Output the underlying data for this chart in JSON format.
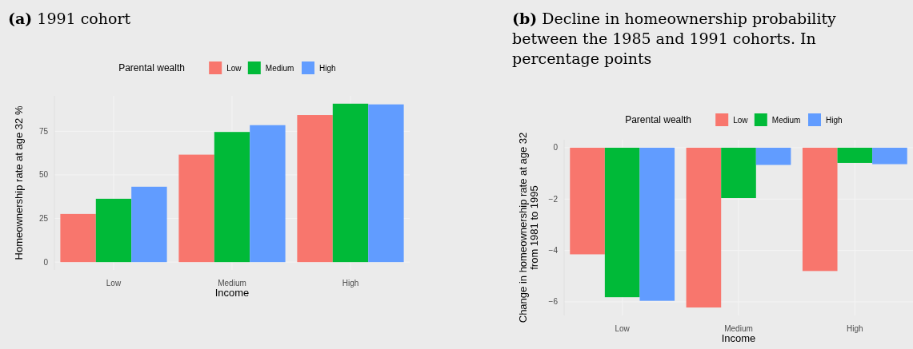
{
  "chart_data": [
    {
      "type": "bar",
      "title": "(a) 1991 cohort",
      "xlabel": "Income",
      "ylabel": "Homeownership rate  at age 32 %",
      "legend_title": "Parental wealth",
      "legend": "top",
      "grid": true,
      "categories": [
        "Low",
        "Medium",
        "High"
      ],
      "ylim": [
        -4.5,
        95.3
      ],
      "yticks": [
        0,
        25,
        50,
        75
      ],
      "series": [
        {
          "name": "Low",
          "color": "#f8766d",
          "values": [
            27.6,
            61.6,
            84.3
          ]
        },
        {
          "name": "Medium",
          "color": "#00ba38",
          "values": [
            36.3,
            74.6,
            90.8
          ]
        },
        {
          "name": "High",
          "color": "#619cff",
          "values": [
            43.2,
            78.5,
            90.4
          ]
        }
      ]
    },
    {
      "type": "bar",
      "title": "(b) Decline in homeownership probability between the 1985 and 1991 cohorts. In percentage points",
      "xlabel": "Income",
      "ylabel": "Change in homeownership rate  at age 32\nfrom 1981 to 1995",
      "legend_title": "Parental wealth",
      "legend": "top",
      "grid": true,
      "categories": [
        "Low",
        "Medium",
        "High"
      ],
      "ylim": [
        -6.53,
        0.31
      ],
      "yticks": [
        {
          "value": 0,
          "label": "0"
        },
        {
          "value": -2,
          "label": "−2"
        },
        {
          "value": -4,
          "label": "−4"
        },
        {
          "value": -6,
          "label": "−6"
        }
      ],
      "series": [
        {
          "name": "Low",
          "color": "#f8766d",
          "values": [
            -4.15,
            -6.22,
            -4.8
          ]
        },
        {
          "name": "Medium",
          "color": "#00ba38",
          "values": [
            -5.82,
            -1.96,
            -0.59
          ]
        },
        {
          "name": "High",
          "color": "#619cff",
          "values": [
            -5.96,
            -0.67,
            -0.64
          ]
        }
      ]
    }
  ]
}
